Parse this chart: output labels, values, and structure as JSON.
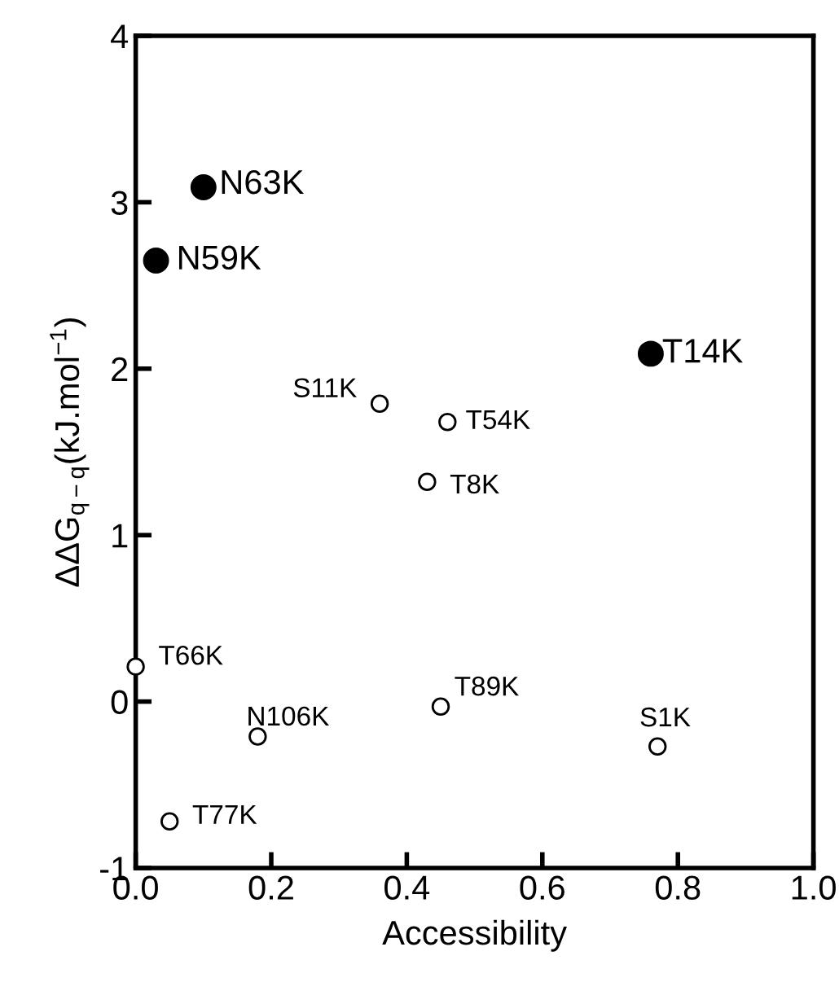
{
  "chart_data": {
    "type": "scatter",
    "xlabel": "Accessibility",
    "ylabel": "ΔΔG$_{q−q}$(kJ.mol$^{−1}$)",
    "xlim": [
      0,
      1
    ],
    "ylim": [
      -1,
      4
    ],
    "xticks": [
      {
        "value": 0,
        "label": "0.0"
      },
      {
        "value": 0.2,
        "label": "0.2"
      },
      {
        "value": 0.4,
        "label": "0.4"
      },
      {
        "value": 0.6,
        "label": "0.6"
      },
      {
        "value": 0.8,
        "label": "0.8"
      },
      {
        "value": 1,
        "label": "1.0"
      }
    ],
    "yticks": [
      {
        "value": -1,
        "label": "-1"
      },
      0,
      1,
      2,
      3,
      4
    ],
    "marker": "circle",
    "grid": false,
    "legend": false,
    "series": [
      {
        "color": "#000000",
        "x": [
          0.1,
          0.03,
          0.76
        ],
        "values": [
          3.09,
          2.65,
          2.09
        ]
      },
      {
        "color": "#ffffff",
        "x": [
          0.36,
          0.46,
          0.43,
          0.0,
          0.45,
          0.18,
          0.77,
          0.05
        ],
        "values": [
          1.79,
          1.68,
          1.32,
          0.21,
          -0.03,
          -0.21,
          -0.27,
          -0.72
        ]
      }
    ],
    "annotations": [
      {
        "text": "N63K",
        "x": 0.1,
        "y": 3.09
      },
      {
        "text": "N59K",
        "x": 0.03,
        "y": 2.65
      },
      {
        "text": "T14K",
        "x": 0.76,
        "y": 2.09
      },
      {
        "text": "S11K",
        "x": 0.36,
        "y": 1.79
      },
      {
        "text": "T54K",
        "x": 0.46,
        "y": 1.68
      },
      {
        "text": "T8K",
        "x": 0.43,
        "y": 1.32
      },
      {
        "text": "T66K",
        "x": 0.0,
        "y": 0.21
      },
      {
        "text": "T89K",
        "x": 0.45,
        "y": -0.03
      },
      {
        "text": "N106K",
        "x": 0.18,
        "y": -0.21
      },
      {
        "text": "S1K",
        "x": 0.77,
        "y": -0.27
      },
      {
        "text": "T77K",
        "x": 0.05,
        "y": -0.72
      }
    ]
  }
}
